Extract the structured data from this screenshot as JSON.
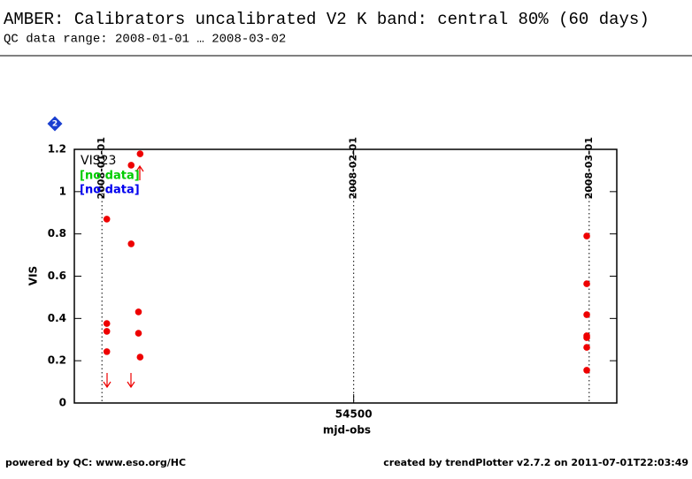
{
  "chart_data": {
    "type": "scatter",
    "title": "AMBER: Calibrators uncalibrated V2 K band: central 80% (60 days)",
    "subtitle": "QC data range: 2008-01-01 … 2008-03-02",
    "xlabel": "mjd-obs",
    "ylabel": "VIS",
    "xlim": [
      54465.6,
      54532.4
    ],
    "ylim": [
      0,
      1.2
    ],
    "xticks": [
      54500
    ],
    "yticks": [
      0,
      0.2,
      0.4,
      0.6,
      0.8,
      1,
      1.2
    ],
    "date_markers": [
      {
        "label": "2008-01-01",
        "x": 54469
      },
      {
        "label": "2008-02-01",
        "x": 54500
      },
      {
        "label": "2008-03-01",
        "x": 54529
      }
    ],
    "series": [
      {
        "name": "VIS23",
        "color": "#ee0000",
        "x": [
          54469.6,
          54469.6,
          54469.6,
          54469.6,
          54472.6,
          54472.6,
          54473.5,
          54473.5,
          54473.7,
          54473.7,
          54528.7,
          54528.7,
          54528.7,
          54528.7,
          54528.7,
          54528.7,
          54528.7
        ],
        "values": [
          0.87,
          0.376,
          0.339,
          0.243,
          1.125,
          0.753,
          0.431,
          0.33,
          1.179,
          0.217,
          0.79,
          0.564,
          0.418,
          0.318,
          0.309,
          0.263,
          0.155
        ]
      }
    ],
    "annotations": [
      {
        "text": "[no data]",
        "color": "#00cc00"
      },
      {
        "text": "[no data]",
        "color": "#0000ee"
      }
    ],
    "footer_left": "powered by QC: www.eso.org/HC",
    "footer_right": "created by trendPlotter v2.7.2 on 2011-07-01T22:03:49"
  }
}
